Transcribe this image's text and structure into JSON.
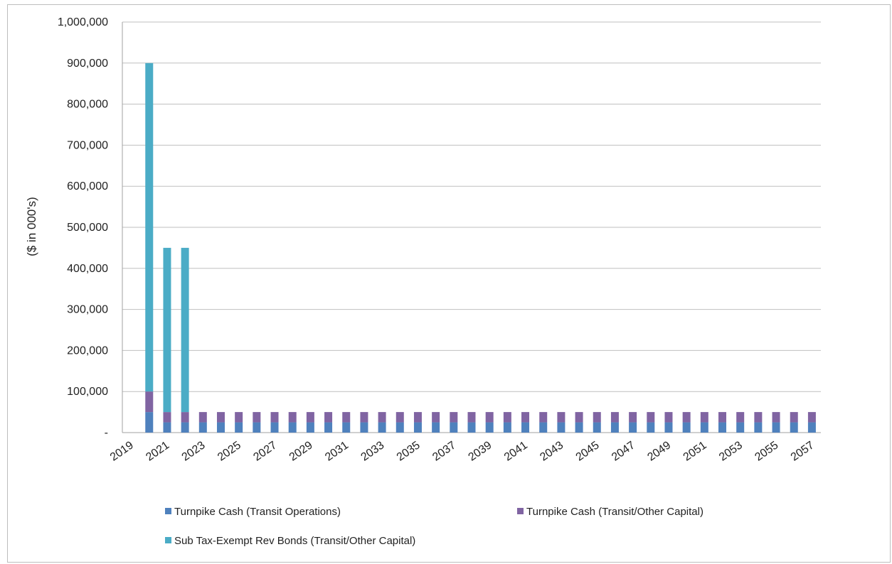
{
  "chart_data": {
    "type": "bar",
    "stacked": true,
    "title": "",
    "xlabel": "",
    "ylabel": "($ in 000's)",
    "ylim": [
      0,
      1000000
    ],
    "y_ticks": [
      "-",
      "100,000",
      "200,000",
      "300,000",
      "400,000",
      "500,000",
      "600,000",
      "700,000",
      "800,000",
      "900,000",
      "1,000,000"
    ],
    "x_tick_labels": [
      "2019",
      "2021",
      "2023",
      "2025",
      "2027",
      "2029",
      "2031",
      "2033",
      "2035",
      "2037",
      "2039",
      "2041",
      "2043",
      "2045",
      "2047",
      "2049",
      "2051",
      "2053",
      "2055",
      "2057"
    ],
    "grid": true,
    "legend_position": "bottom",
    "categories": [
      "2019",
      "2020",
      "2021",
      "2022",
      "2023",
      "2024",
      "2025",
      "2026",
      "2027",
      "2028",
      "2029",
      "2030",
      "2031",
      "2032",
      "2033",
      "2034",
      "2035",
      "2036",
      "2037",
      "2038",
      "2039",
      "2040",
      "2041",
      "2042",
      "2043",
      "2044",
      "2045",
      "2046",
      "2047",
      "2048",
      "2049",
      "2050",
      "2051",
      "2052",
      "2053",
      "2054",
      "2055",
      "2056",
      "2057"
    ],
    "series": [
      {
        "name": "Turnpike Cash (Transit Operations)",
        "color": "#4f81bd",
        "values": [
          0,
          50000,
          25000,
          25000,
          25000,
          25000,
          25000,
          25000,
          25000,
          25000,
          25000,
          25000,
          25000,
          25000,
          25000,
          25000,
          25000,
          25000,
          25000,
          25000,
          25000,
          25000,
          25000,
          25000,
          25000,
          25000,
          25000,
          25000,
          25000,
          25000,
          25000,
          25000,
          25000,
          25000,
          25000,
          25000,
          25000,
          25000,
          25000
        ]
      },
      {
        "name": "Turnpike Cash (Transit/Other Capital)",
        "color": "#8064a2",
        "values": [
          0,
          50000,
          25000,
          25000,
          25000,
          25000,
          25000,
          25000,
          25000,
          25000,
          25000,
          25000,
          25000,
          25000,
          25000,
          25000,
          25000,
          25000,
          25000,
          25000,
          25000,
          25000,
          25000,
          25000,
          25000,
          25000,
          25000,
          25000,
          25000,
          25000,
          25000,
          25000,
          25000,
          25000,
          25000,
          25000,
          25000,
          25000,
          25000
        ]
      },
      {
        "name": "Sub Tax-Exempt Rev Bonds (Transit/Other Capital)",
        "color": "#4bacc6",
        "values": [
          0,
          800000,
          400000,
          400000,
          0,
          0,
          0,
          0,
          0,
          0,
          0,
          0,
          0,
          0,
          0,
          0,
          0,
          0,
          0,
          0,
          0,
          0,
          0,
          0,
          0,
          0,
          0,
          0,
          0,
          0,
          0,
          0,
          0,
          0,
          0,
          0,
          0,
          0,
          0
        ]
      }
    ]
  }
}
